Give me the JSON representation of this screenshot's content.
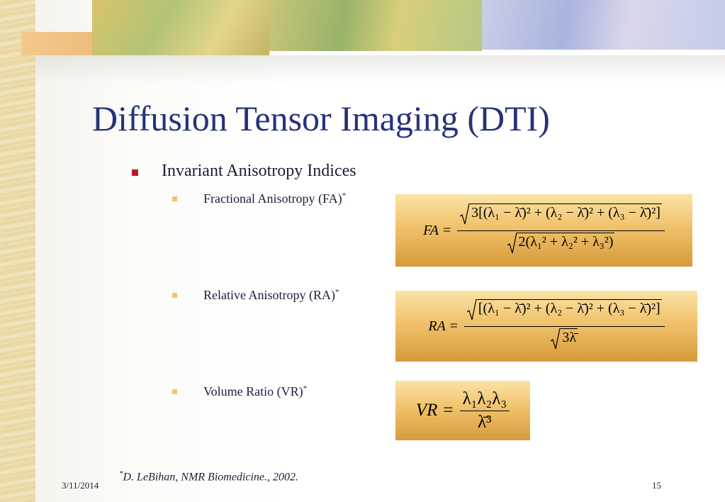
{
  "title": "Diffusion Tensor Imaging (DTI)",
  "bullets": [
    {
      "text": "Invariant Anisotropy Indices",
      "items": [
        {
          "text": "Fractional Anisotropy (FA)",
          "mark": "*",
          "formula": {
            "lhs": "FA =",
            "numerator": "3[(λ₁ − λ̄)² + (λ₂ − λ̄)² + (λ₃ − λ̄)²]",
            "numerator_root": true,
            "denominator": "2(λ₁² + λ₂² + λ₃²)",
            "denominator_root": true
          }
        },
        {
          "text": "Relative Anisotropy (RA)",
          "mark": "*",
          "formula": {
            "lhs": "RA =",
            "numerator": "[(λ₁ − λ̄)² + (λ₂ − λ̄)² + (λ₃ − λ̄)²]",
            "numerator_root": true,
            "denominator": "3λ̄",
            "denominator_root": true
          }
        },
        {
          "text": "Volume Ratio (VR)",
          "mark": "*",
          "formula": {
            "lhs": "VR =",
            "numerator": "λ₁λ₂λ₃",
            "numerator_root": false,
            "denominator": "λ̄³",
            "denominator_root": false
          }
        }
      ]
    }
  ],
  "footnote": {
    "mark": "*",
    "text": "D. LeBihan, NMR Biomedicine., 2002."
  },
  "footer": {
    "date": "3/11/2014",
    "page": "15"
  }
}
